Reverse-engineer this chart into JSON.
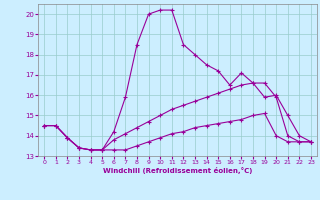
{
  "xlabel": "Windchill (Refroidissement éolien,°C)",
  "bg_color": "#cceeff",
  "line_color": "#990099",
  "grid_color": "#99cccc",
  "xlim": [
    -0.5,
    23.5
  ],
  "ylim": [
    13,
    20.5
  ],
  "yticks": [
    13,
    14,
    15,
    16,
    17,
    18,
    19,
    20
  ],
  "xticks": [
    0,
    1,
    2,
    3,
    4,
    5,
    6,
    7,
    8,
    9,
    10,
    11,
    12,
    13,
    14,
    15,
    16,
    17,
    18,
    19,
    20,
    21,
    22,
    23
  ],
  "line1_x": [
    0,
    1,
    2,
    3,
    4,
    5,
    6,
    7,
    8,
    9,
    10,
    11,
    12,
    13,
    14,
    15,
    16,
    17,
    18,
    19,
    20,
    21,
    22,
    23
  ],
  "line1_y": [
    14.5,
    14.5,
    13.9,
    13.4,
    13.3,
    13.3,
    14.2,
    15.9,
    18.5,
    20.0,
    20.2,
    20.2,
    18.5,
    18.0,
    17.5,
    17.2,
    16.5,
    17.1,
    16.6,
    15.9,
    16.0,
    15.0,
    14.0,
    13.7
  ],
  "line2_x": [
    0,
    1,
    2,
    3,
    4,
    5,
    6,
    7,
    8,
    9,
    10,
    11,
    12,
    13,
    14,
    15,
    16,
    17,
    18,
    19,
    20,
    21,
    22,
    23
  ],
  "line2_y": [
    14.5,
    14.5,
    13.9,
    13.4,
    13.3,
    13.3,
    13.8,
    14.1,
    14.4,
    14.7,
    15.0,
    15.3,
    15.5,
    15.7,
    15.9,
    16.1,
    16.3,
    16.5,
    16.6,
    16.6,
    15.9,
    14.0,
    13.7,
    13.7
  ],
  "line3_x": [
    0,
    1,
    2,
    3,
    4,
    5,
    6,
    7,
    8,
    9,
    10,
    11,
    12,
    13,
    14,
    15,
    16,
    17,
    18,
    19,
    20,
    21,
    22,
    23
  ],
  "line3_y": [
    14.5,
    14.5,
    13.9,
    13.4,
    13.3,
    13.3,
    13.3,
    13.3,
    13.5,
    13.7,
    13.9,
    14.1,
    14.2,
    14.4,
    14.5,
    14.6,
    14.7,
    14.8,
    15.0,
    15.1,
    14.0,
    13.7,
    13.7,
    13.7
  ]
}
